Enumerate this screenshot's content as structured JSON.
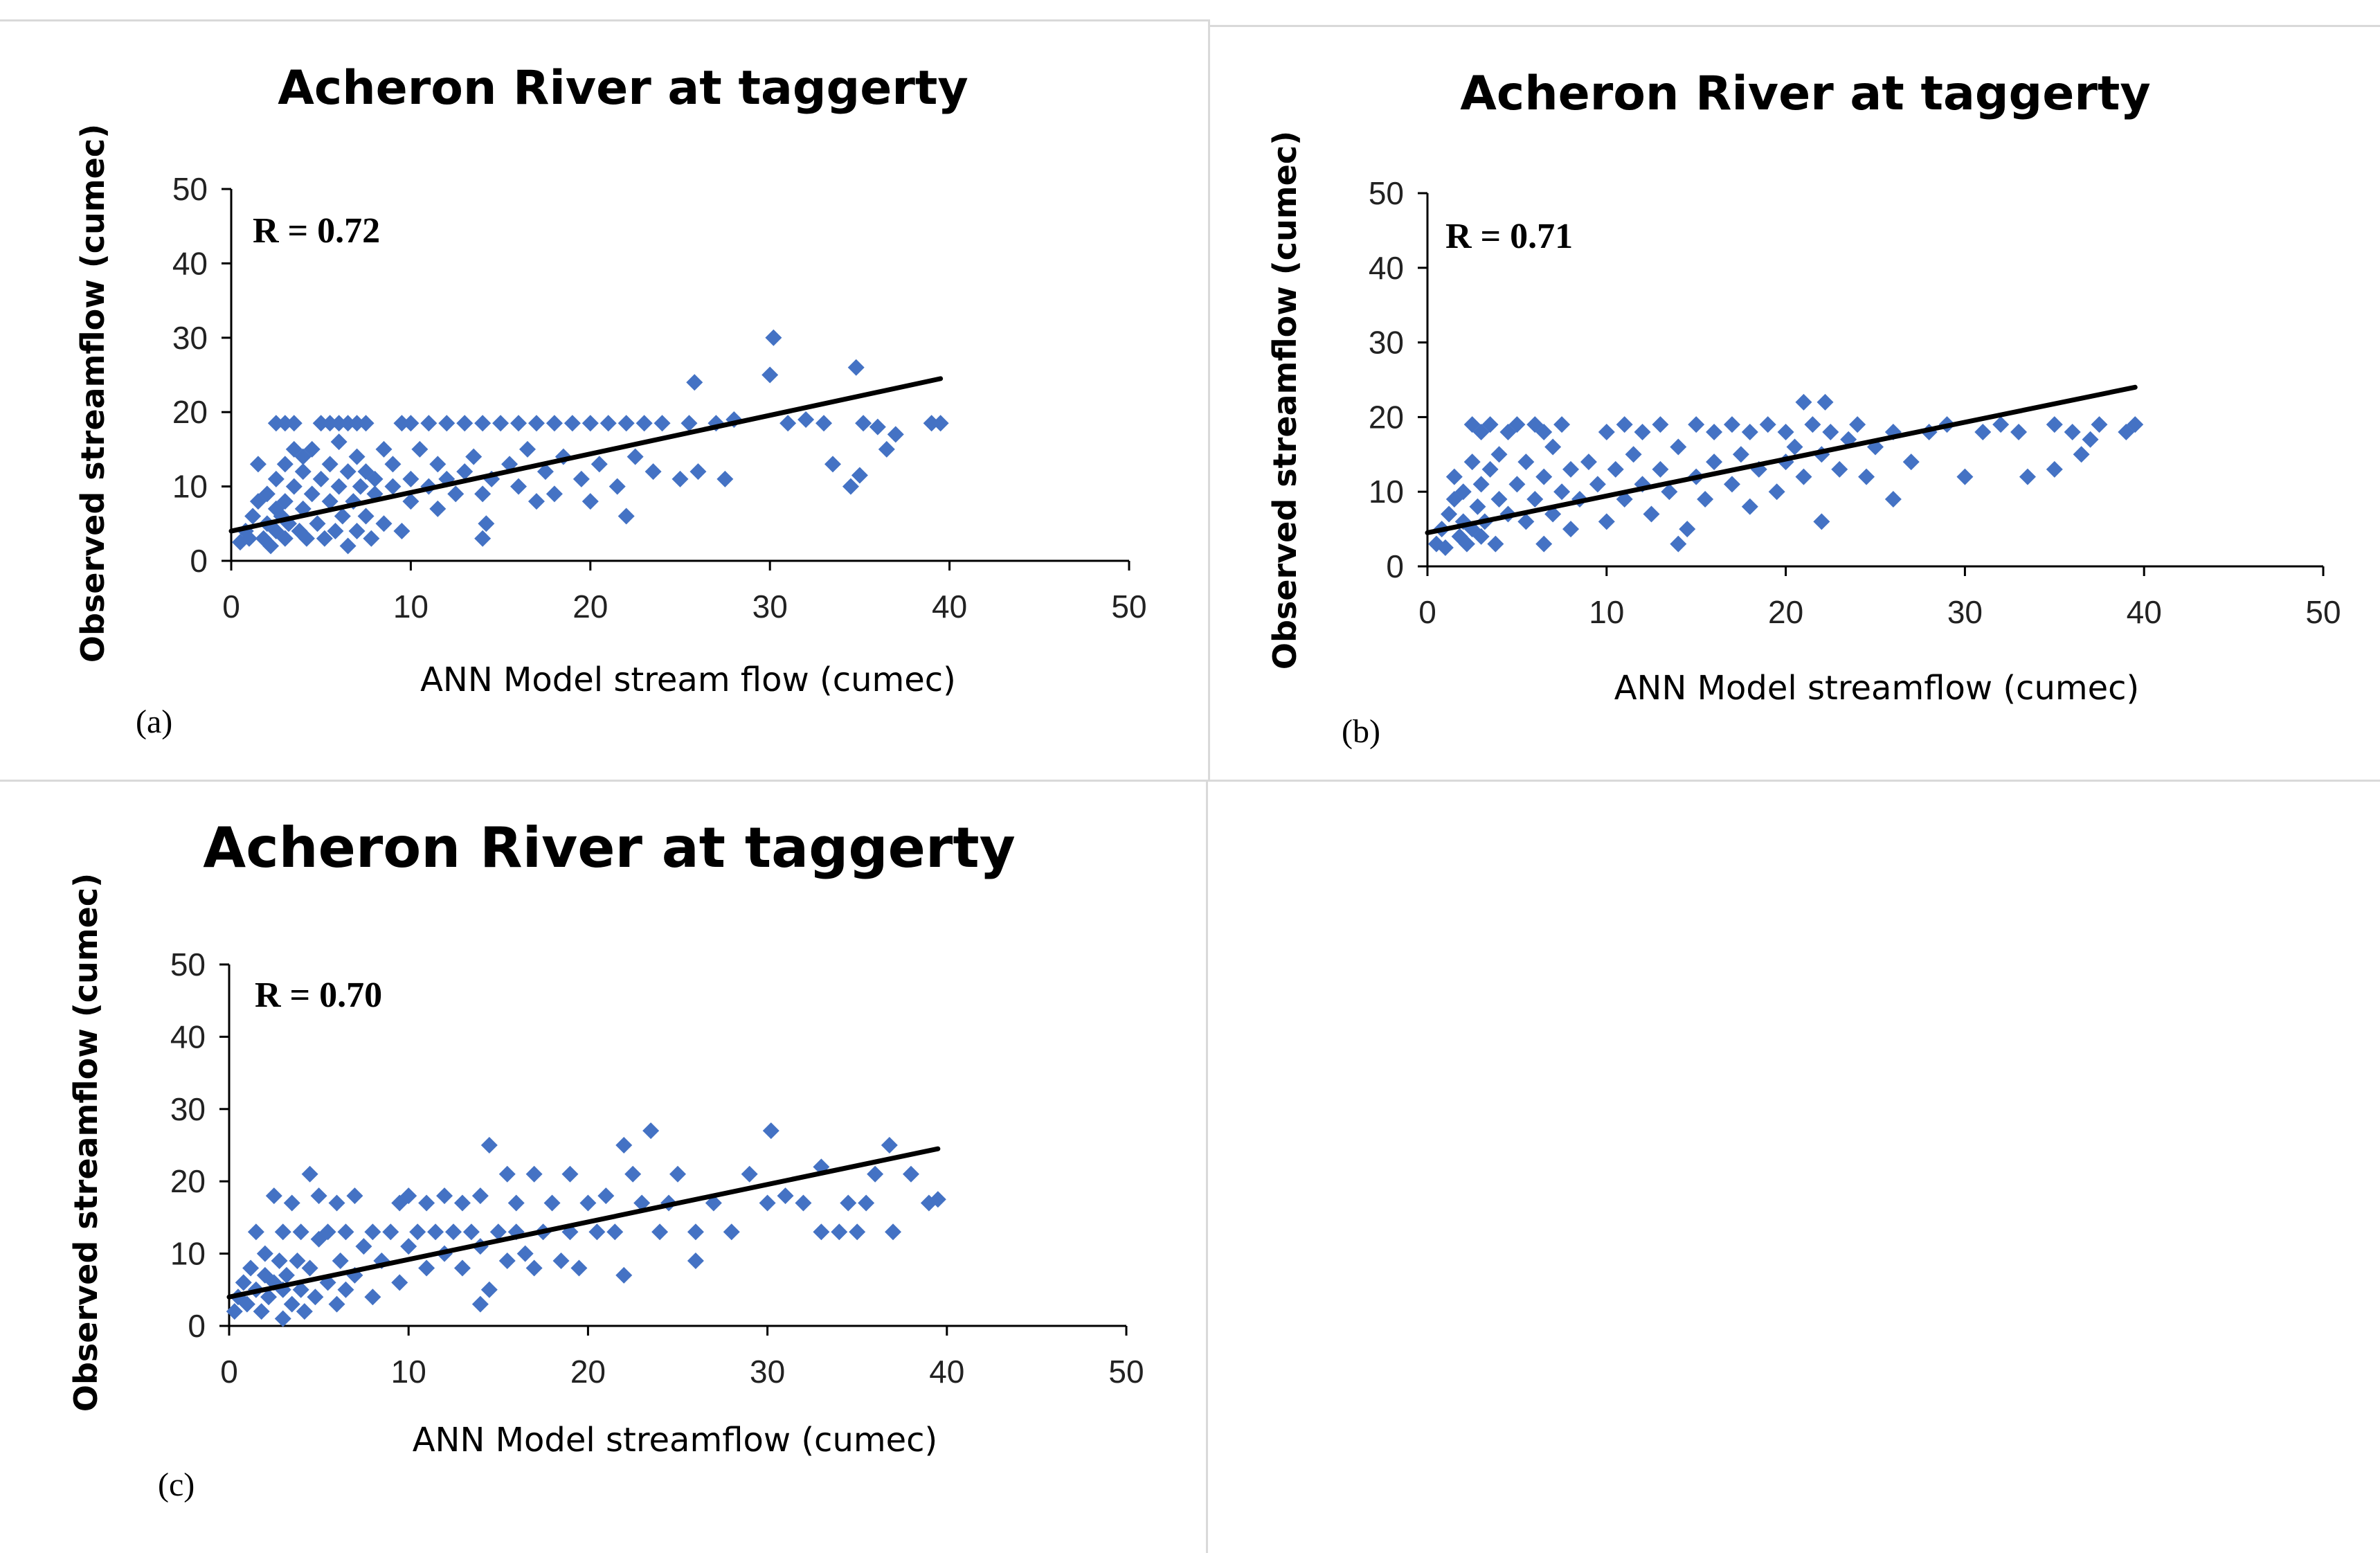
{
  "chart_data": [
    {
      "panel_label": "(a)",
      "type": "scatter",
      "title": "Acheron River at taggerty",
      "xlabel": "ANN Model stream flow (cumec)",
      "ylabel": "Observed streamflow (cumec)",
      "xlim": [
        0,
        50
      ],
      "ylim": [
        0,
        50
      ],
      "xticks": [
        "0",
        "10",
        "20",
        "30",
        "40",
        "50"
      ],
      "yticks": [
        "0",
        "10",
        "20",
        "30",
        "40",
        "50"
      ],
      "r_label": "R = 0.72",
      "marker_color": "#4472C4",
      "trendline": {
        "x0": 0,
        "y0": 4.0,
        "x1": 39.5,
        "y1": 24.5,
        "color": "#000000"
      },
      "points": [
        [
          0.5,
          2.5
        ],
        [
          0.8,
          4
        ],
        [
          1,
          3
        ],
        [
          1.2,
          6
        ],
        [
          1.5,
          8
        ],
        [
          1.5,
          13
        ],
        [
          1.8,
          3
        ],
        [
          2,
          5
        ],
        [
          2,
          9
        ],
        [
          2.2,
          2
        ],
        [
          2.5,
          4
        ],
        [
          2.5,
          7
        ],
        [
          2.5,
          11
        ],
        [
          2.5,
          18.5
        ],
        [
          2.8,
          6
        ],
        [
          3,
          3
        ],
        [
          3,
          8
        ],
        [
          3,
          13
        ],
        [
          3,
          18.5
        ],
        [
          3.2,
          5
        ],
        [
          3.5,
          10
        ],
        [
          3.5,
          15
        ],
        [
          3.5,
          18.5
        ],
        [
          3.8,
          4
        ],
        [
          4,
          7
        ],
        [
          4,
          12
        ],
        [
          4,
          14
        ],
        [
          4.2,
          3
        ],
        [
          4.5,
          9
        ],
        [
          4.5,
          15
        ],
        [
          4.8,
          5
        ],
        [
          5,
          11
        ],
        [
          5,
          18.5
        ],
        [
          5.2,
          3
        ],
        [
          5.5,
          8
        ],
        [
          5.5,
          13
        ],
        [
          5.5,
          18.5
        ],
        [
          5.8,
          4
        ],
        [
          6,
          10
        ],
        [
          6,
          16
        ],
        [
          6,
          18.5
        ],
        [
          6.2,
          6
        ],
        [
          6.5,
          2
        ],
        [
          6.5,
          12
        ],
        [
          6.5,
          18.5
        ],
        [
          6.8,
          8
        ],
        [
          7,
          4
        ],
        [
          7,
          14
        ],
        [
          7,
          18.5
        ],
        [
          7.2,
          10
        ],
        [
          7.5,
          6
        ],
        [
          7.5,
          12
        ],
        [
          7.5,
          18.5
        ],
        [
          7.8,
          3
        ],
        [
          8,
          9
        ],
        [
          8,
          11
        ],
        [
          8.5,
          15
        ],
        [
          8.5,
          5
        ],
        [
          9,
          10
        ],
        [
          9,
          13
        ],
        [
          9.5,
          18.5
        ],
        [
          9.5,
          4
        ],
        [
          10,
          8
        ],
        [
          10,
          11
        ],
        [
          10,
          18.5
        ],
        [
          10.5,
          15
        ],
        [
          11,
          10
        ],
        [
          11,
          18.5
        ],
        [
          11.5,
          13
        ],
        [
          11.5,
          7
        ],
        [
          12,
          11
        ],
        [
          12,
          18.5
        ],
        [
          12.5,
          9
        ],
        [
          13,
          12
        ],
        [
          13,
          18.5
        ],
        [
          13.5,
          14
        ],
        [
          14,
          3
        ],
        [
          14,
          9
        ],
        [
          14,
          18.5
        ],
        [
          14.2,
          5
        ],
        [
          14.5,
          11
        ],
        [
          15,
          18.5
        ],
        [
          15.5,
          13
        ],
        [
          16,
          10
        ],
        [
          16,
          18.5
        ],
        [
          16.5,
          15
        ],
        [
          17,
          8
        ],
        [
          17,
          18.5
        ],
        [
          17.5,
          12
        ],
        [
          18,
          9
        ],
        [
          18,
          18.5
        ],
        [
          18.5,
          14
        ],
        [
          19,
          18.5
        ],
        [
          19.5,
          11
        ],
        [
          20,
          8
        ],
        [
          20,
          18.5
        ],
        [
          20.5,
          13
        ],
        [
          21,
          18.5
        ],
        [
          21.5,
          10
        ],
        [
          22,
          6
        ],
        [
          22,
          18.5
        ],
        [
          22.5,
          14
        ],
        [
          23,
          18.5
        ],
        [
          23.5,
          12
        ],
        [
          24,
          18.5
        ],
        [
          25,
          11
        ],
        [
          25.5,
          18.5
        ],
        [
          25.8,
          24
        ],
        [
          26,
          12
        ],
        [
          27,
          18.5
        ],
        [
          27.5,
          11
        ],
        [
          28,
          19
        ],
        [
          30,
          25
        ],
        [
          30.2,
          30
        ],
        [
          31,
          18.5
        ],
        [
          32,
          19
        ],
        [
          33,
          18.5
        ],
        [
          33.5,
          13
        ],
        [
          34.5,
          10
        ],
        [
          34.8,
          26
        ],
        [
          35,
          11.5
        ],
        [
          35.2,
          18.5
        ],
        [
          36,
          18
        ],
        [
          36.5,
          15
        ],
        [
          37,
          17
        ],
        [
          39,
          18.5
        ],
        [
          39.5,
          18.5
        ]
      ]
    },
    {
      "panel_label": "(b)",
      "type": "scatter",
      "title": "Acheron River at taggerty",
      "xlabel": "ANN Model streamflow (cumec)",
      "ylabel": "Observed streamflow (cumec)",
      "xlim": [
        0,
        50
      ],
      "ylim": [
        0,
        50
      ],
      "xticks": [
        "0",
        "10",
        "20",
        "30",
        "40",
        "50"
      ],
      "yticks": [
        "0",
        "10",
        "20",
        "30",
        "40",
        "50"
      ],
      "r_label": "R = 0.71",
      "marker_color": "#4472C4",
      "trendline": {
        "x0": 0,
        "y0": 4.5,
        "x1": 39.5,
        "y1": 24.0,
        "color": "#000000"
      },
      "points": [
        [
          0.5,
          3
        ],
        [
          0.8,
          5
        ],
        [
          1,
          2.5
        ],
        [
          1.2,
          7
        ],
        [
          1.5,
          9
        ],
        [
          1.5,
          12
        ],
        [
          1.8,
          4
        ],
        [
          2,
          6
        ],
        [
          2,
          10
        ],
        [
          2.2,
          3
        ],
        [
          2.5,
          5
        ],
        [
          2.5,
          14
        ],
        [
          2.5,
          19
        ],
        [
          2.8,
          8
        ],
        [
          3,
          4
        ],
        [
          3,
          11
        ],
        [
          3,
          18
        ],
        [
          3.2,
          6
        ],
        [
          3.5,
          13
        ],
        [
          3.5,
          19
        ],
        [
          3.8,
          3
        ],
        [
          4,
          9
        ],
        [
          4,
          15
        ],
        [
          4.5,
          7
        ],
        [
          4.5,
          18
        ],
        [
          5,
          11
        ],
        [
          5,
          19
        ],
        [
          5.5,
          6
        ],
        [
          5.5,
          14
        ],
        [
          6,
          9
        ],
        [
          6,
          19
        ],
        [
          6.5,
          3
        ],
        [
          6.5,
          12
        ],
        [
          6.5,
          18
        ],
        [
          7,
          7
        ],
        [
          7,
          16
        ],
        [
          7.5,
          10
        ],
        [
          7.5,
          19
        ],
        [
          8,
          5
        ],
        [
          8,
          13
        ],
        [
          8.5,
          9
        ],
        [
          9,
          14
        ],
        [
          9.5,
          11
        ],
        [
          10,
          6
        ],
        [
          10,
          18
        ],
        [
          10.5,
          13
        ],
        [
          11,
          9
        ],
        [
          11,
          19
        ],
        [
          11.5,
          15
        ],
        [
          12,
          11
        ],
        [
          12,
          18
        ],
        [
          12.5,
          7
        ],
        [
          13,
          13
        ],
        [
          13,
          19
        ],
        [
          13.5,
          10
        ],
        [
          14,
          3
        ],
        [
          14,
          16
        ],
        [
          14.5,
          5
        ],
        [
          15,
          12
        ],
        [
          15,
          19
        ],
        [
          15.5,
          9
        ],
        [
          16,
          14
        ],
        [
          16,
          18
        ],
        [
          17,
          11
        ],
        [
          17,
          19
        ],
        [
          17.5,
          15
        ],
        [
          18,
          8
        ],
        [
          18,
          18
        ],
        [
          18.5,
          13
        ],
        [
          19,
          19
        ],
        [
          19.5,
          10
        ],
        [
          20,
          14
        ],
        [
          20,
          18
        ],
        [
          20.5,
          16
        ],
        [
          21,
          12
        ],
        [
          21,
          22
        ],
        [
          21.5,
          19
        ],
        [
          22,
          6
        ],
        [
          22,
          15
        ],
        [
          22.2,
          22
        ],
        [
          22.5,
          18
        ],
        [
          23,
          13
        ],
        [
          23.5,
          17
        ],
        [
          24,
          19
        ],
        [
          24.5,
          12
        ],
        [
          25,
          16
        ],
        [
          26,
          9
        ],
        [
          26,
          18
        ],
        [
          27,
          14
        ],
        [
          28,
          18
        ],
        [
          29,
          19
        ],
        [
          30,
          12
        ],
        [
          31,
          18
        ],
        [
          32,
          19
        ],
        [
          33,
          18
        ],
        [
          33.5,
          12
        ],
        [
          35,
          13
        ],
        [
          35,
          19
        ],
        [
          36,
          18
        ],
        [
          36.5,
          15
        ],
        [
          37,
          17
        ],
        [
          37.5,
          19
        ],
        [
          39,
          18
        ],
        [
          39.5,
          19
        ]
      ]
    },
    {
      "panel_label": "(c)",
      "type": "scatter",
      "title": "Acheron River at taggerty",
      "xlabel": "ANN Model streamflow (cumec)",
      "ylabel": "Observed streamflow (cumec)",
      "xlim": [
        0,
        50
      ],
      "ylim": [
        0,
        50
      ],
      "xticks": [
        "0",
        "10",
        "20",
        "30",
        "40",
        "50"
      ],
      "yticks": [
        "0",
        "10",
        "20",
        "30",
        "40",
        "50"
      ],
      "r_label": "R = 0.70",
      "marker_color": "#4472C4",
      "trendline": {
        "x0": 0,
        "y0": 4.0,
        "x1": 39.5,
        "y1": 24.5,
        "color": "#000000"
      },
      "points": [
        [
          0.3,
          2
        ],
        [
          0.5,
          4
        ],
        [
          0.8,
          6
        ],
        [
          1,
          3
        ],
        [
          1.2,
          8
        ],
        [
          1.5,
          5
        ],
        [
          1.5,
          13
        ],
        [
          1.8,
          2
        ],
        [
          2,
          7
        ],
        [
          2,
          10
        ],
        [
          2.2,
          4
        ],
        [
          2.5,
          6
        ],
        [
          2.5,
          18
        ],
        [
          2.8,
          9
        ],
        [
          3,
          1
        ],
        [
          3,
          5
        ],
        [
          3,
          13
        ],
        [
          3.2,
          7
        ],
        [
          3.5,
          3
        ],
        [
          3.5,
          17
        ],
        [
          3.8,
          9
        ],
        [
          4,
          5
        ],
        [
          4,
          13
        ],
        [
          4.2,
          2
        ],
        [
          4.5,
          8
        ],
        [
          4.5,
          21
        ],
        [
          4.8,
          4
        ],
        [
          5,
          12
        ],
        [
          5,
          18
        ],
        [
          5.5,
          6
        ],
        [
          5.5,
          13
        ],
        [
          6,
          3
        ],
        [
          6,
          17
        ],
        [
          6.2,
          9
        ],
        [
          6.5,
          5
        ],
        [
          6.5,
          13
        ],
        [
          7,
          7
        ],
        [
          7,
          18
        ],
        [
          7.5,
          11
        ],
        [
          8,
          4
        ],
        [
          8,
          13
        ],
        [
          8.5,
          9
        ],
        [
          9,
          13
        ],
        [
          9.5,
          17
        ],
        [
          9.5,
          6
        ],
        [
          10,
          11
        ],
        [
          10,
          18
        ],
        [
          10.5,
          13
        ],
        [
          11,
          8
        ],
        [
          11,
          17
        ],
        [
          11.5,
          13
        ],
        [
          12,
          10
        ],
        [
          12,
          18
        ],
        [
          12.5,
          13
        ],
        [
          13,
          8
        ],
        [
          13,
          17
        ],
        [
          13.5,
          13
        ],
        [
          14,
          3
        ],
        [
          14,
          11
        ],
        [
          14,
          18
        ],
        [
          14.5,
          25
        ],
        [
          14.5,
          5
        ],
        [
          15,
          13
        ],
        [
          15.5,
          21
        ],
        [
          15.5,
          9
        ],
        [
          16,
          13
        ],
        [
          16,
          17
        ],
        [
          16.5,
          10
        ],
        [
          17,
          21
        ],
        [
          17,
          8
        ],
        [
          17.5,
          13
        ],
        [
          18,
          17
        ],
        [
          18.5,
          9
        ],
        [
          19,
          21
        ],
        [
          19,
          13
        ],
        [
          19.5,
          8
        ],
        [
          20,
          17
        ],
        [
          20.5,
          13
        ],
        [
          21,
          18
        ],
        [
          21.5,
          13
        ],
        [
          22,
          25
        ],
        [
          22,
          7
        ],
        [
          22.5,
          21
        ],
        [
          23,
          17
        ],
        [
          23.5,
          27
        ],
        [
          24,
          13
        ],
        [
          24.5,
          17
        ],
        [
          25,
          21
        ],
        [
          26,
          9
        ],
        [
          26,
          13
        ],
        [
          27,
          17
        ],
        [
          28,
          13
        ],
        [
          29,
          21
        ],
        [
          30,
          17
        ],
        [
          30.2,
          27
        ],
        [
          31,
          18
        ],
        [
          32,
          17
        ],
        [
          33,
          13
        ],
        [
          33,
          22
        ],
        [
          34,
          13
        ],
        [
          34.5,
          17
        ],
        [
          35,
          13
        ],
        [
          35.5,
          17
        ],
        [
          36,
          21
        ],
        [
          36.8,
          25
        ],
        [
          37,
          13
        ],
        [
          38,
          21
        ],
        [
          39,
          17
        ],
        [
          39.5,
          17.5
        ]
      ]
    }
  ]
}
